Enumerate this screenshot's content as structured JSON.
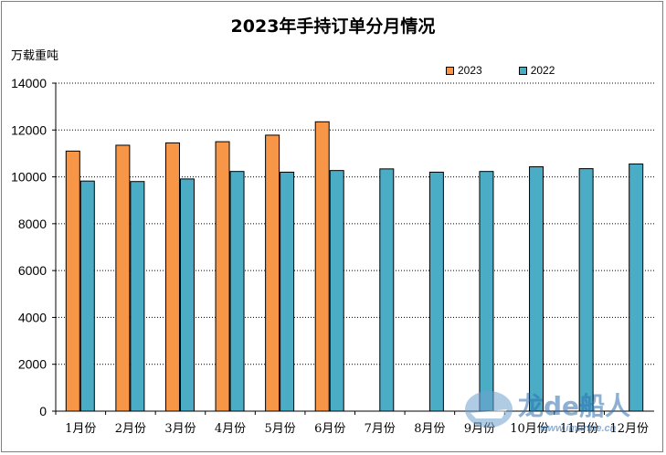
{
  "chart_data": {
    "type": "bar",
    "title": "2023年手持订单分月情况",
    "ylabel": "万载重吨",
    "xlabel": "",
    "ylim": [
      0,
      14000
    ],
    "yticks": [
      0,
      2000,
      4000,
      6000,
      8000,
      10000,
      12000,
      14000
    ],
    "grid": true,
    "legend_position": "top-right",
    "categories": [
      "1月份",
      "2月份",
      "3月份",
      "4月份",
      "5月份",
      "6月份",
      "7月份",
      "8月份",
      "9月份",
      "10月份",
      "11月份",
      "12月份"
    ],
    "series": [
      {
        "name": "2023",
        "color": "#f79646",
        "values": [
          11100,
          11350,
          11450,
          11500,
          11780,
          12350,
          null,
          null,
          null,
          null,
          null,
          null
        ]
      },
      {
        "name": "2022",
        "color": "#4bacc6",
        "values": [
          9820,
          9800,
          9910,
          10230,
          10200,
          10270,
          10340,
          10200,
          10230,
          10430,
          10350,
          10550
        ]
      }
    ]
  },
  "watermark": {
    "brand": "龙de船人",
    "url": "www.imarine.cn"
  }
}
